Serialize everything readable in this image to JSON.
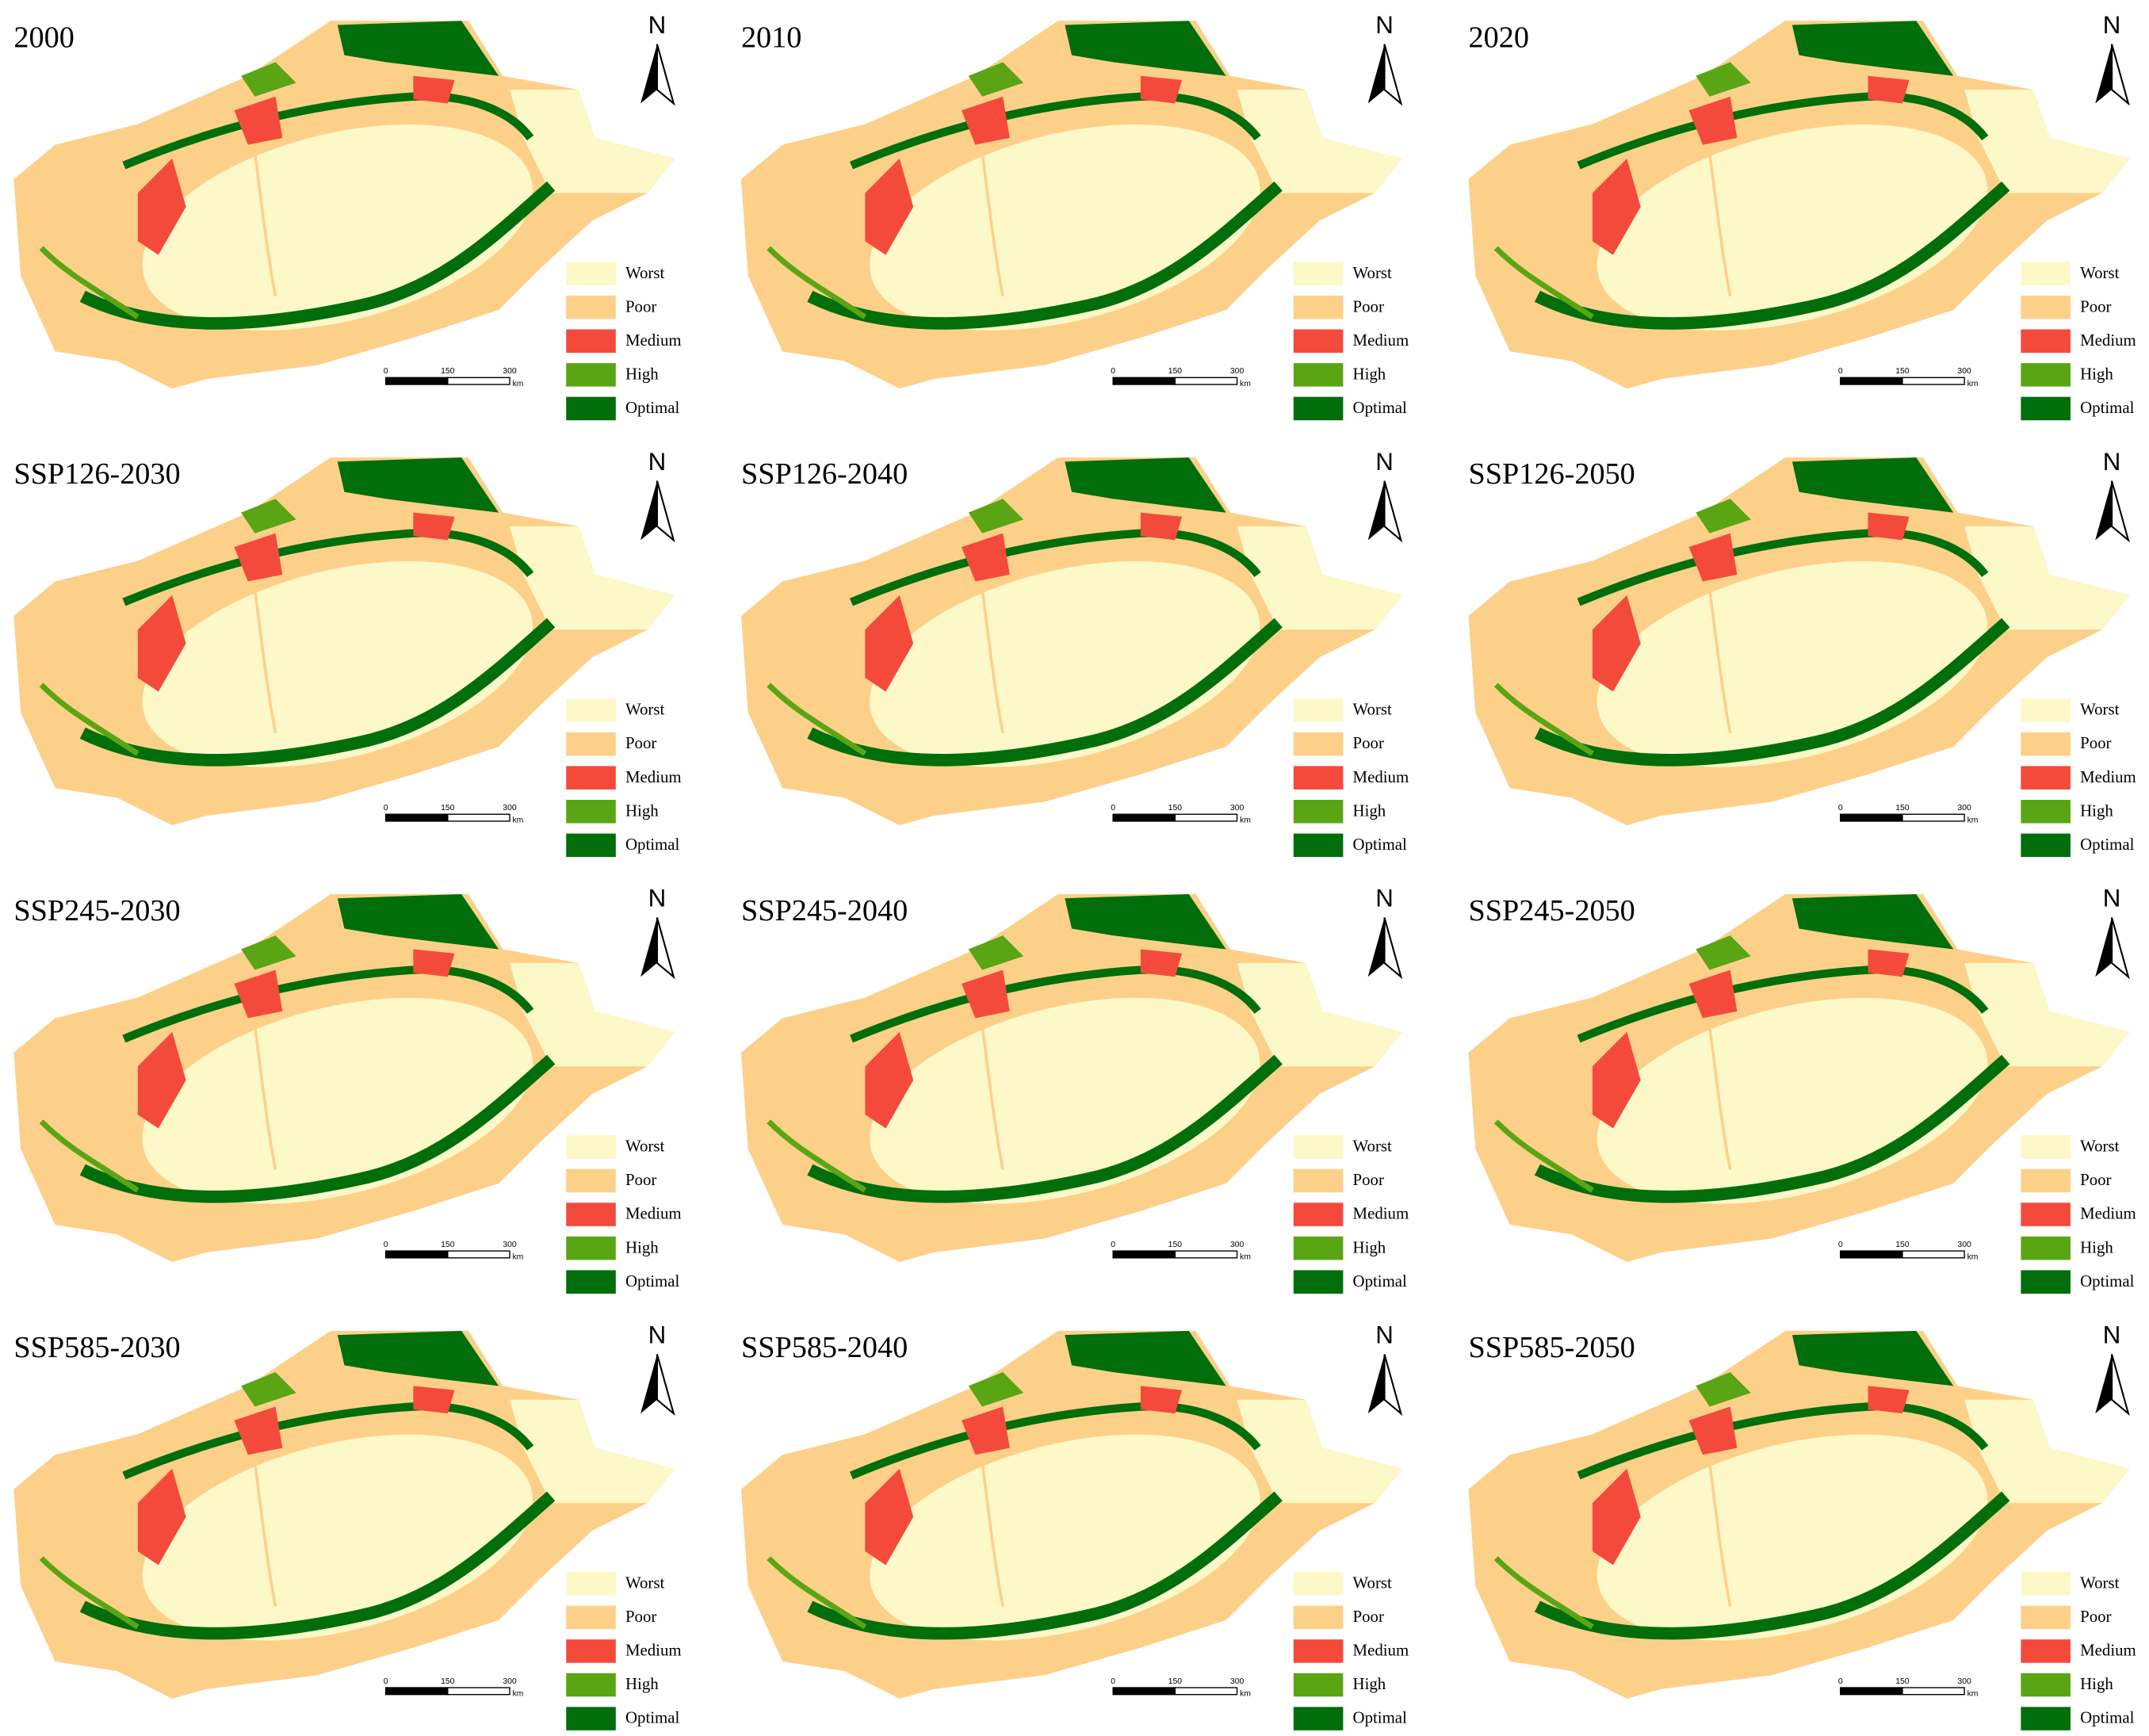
{
  "panels": [
    {
      "title": "2000"
    },
    {
      "title": "2010"
    },
    {
      "title": "2020"
    },
    {
      "title": "SSP126-2030"
    },
    {
      "title": "SSP126-2040"
    },
    {
      "title": "SSP126-2050"
    },
    {
      "title": "SSP245-2030"
    },
    {
      "title": "SSP245-2040"
    },
    {
      "title": "SSP245-2050"
    },
    {
      "title": "SSP585-2030"
    },
    {
      "title": "SSP585-2040"
    },
    {
      "title": "SSP585-2050"
    }
  ],
  "legend": [
    {
      "label": "Worst",
      "color": "#fcf8c8"
    },
    {
      "label": "Poor",
      "color": "#fdd08a"
    },
    {
      "label": "Medium",
      "color": "#f44a3c"
    },
    {
      "label": "High",
      "color": "#5aa514"
    },
    {
      "label": "Optimal",
      "color": "#006e0a"
    }
  ],
  "north": "N",
  "scale_bar": {
    "ticks": [
      0,
      150,
      300
    ],
    "unit": "km"
  }
}
